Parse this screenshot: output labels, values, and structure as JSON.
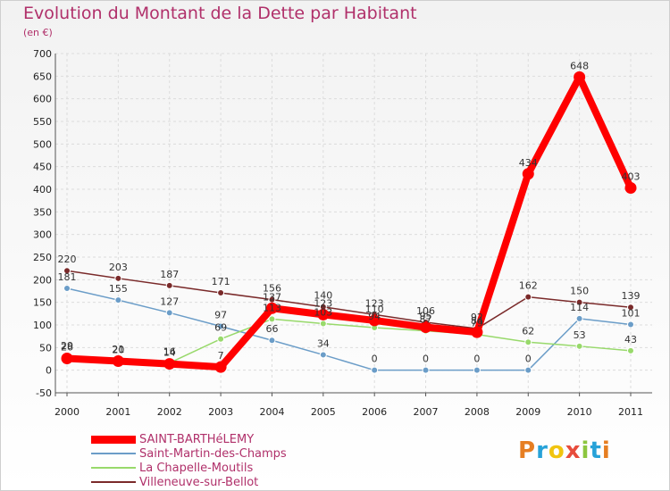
{
  "chart_data": {
    "type": "line",
    "title": "Evolution du Montant de la Dette par Habitant",
    "subtitle": "(en €)",
    "xlabel": "",
    "ylabel": "",
    "ylim": [
      -50,
      700
    ],
    "yticks": [
      -50,
      0,
      50,
      100,
      150,
      200,
      250,
      300,
      350,
      400,
      450,
      500,
      550,
      600,
      650,
      700
    ],
    "categories": [
      "2000",
      "2001",
      "2002",
      "2003",
      "2004",
      "2005",
      "2006",
      "2007",
      "2008",
      "2009",
      "2010",
      "2011"
    ],
    "grid": true,
    "legend_position": "bottom-left",
    "series": [
      {
        "name": "SAINT-BARTHéLEMY",
        "color": "#ff0000",
        "emphasis": true,
        "values": [
          26,
          20,
          14,
          7,
          137,
          123,
          110,
          95,
          84,
          434,
          648,
          403
        ],
        "labels": [
          "26",
          "20",
          "14",
          "7",
          "137",
          "123",
          "110",
          "95",
          "84",
          "434",
          "648",
          "403"
        ]
      },
      {
        "name": "Saint-Martin-des-Champs",
        "color": "#6b9dc8",
        "emphasis": false,
        "values": [
          181,
          155,
          127,
          97,
          66,
          34,
          0,
          0,
          0,
          0,
          114,
          101
        ],
        "labels": [
          "181",
          "155",
          "127",
          "97",
          "66",
          "34",
          "0",
          "0",
          "0",
          "0",
          "114",
          "101"
        ]
      },
      {
        "name": "La Chapelle-Moutils",
        "color": "#98d96b",
        "emphasis": false,
        "values": [
          29,
          21,
          16,
          69,
          113,
          103,
          94,
          87,
          79,
          62,
          53,
          43
        ],
        "labels": [
          "29",
          "21",
          "16",
          "69",
          "113",
          "103",
          "94",
          "87",
          "79",
          "62",
          "53",
          "43"
        ]
      },
      {
        "name": "Villeneuve-sur-Bellot",
        "color": "#7a2a2a",
        "emphasis": false,
        "values": [
          220,
          203,
          187,
          171,
          156,
          140,
          123,
          106,
          92,
          162,
          150,
          139
        ],
        "labels": [
          "220",
          "203",
          "187",
          "171",
          "156",
          "140",
          "123",
          "106",
          "92",
          "162",
          "150",
          "139"
        ]
      }
    ]
  },
  "logo": {
    "text": "Proxiti",
    "letters": [
      "P",
      "r",
      "o",
      "x",
      "i",
      "t",
      "i"
    ]
  }
}
